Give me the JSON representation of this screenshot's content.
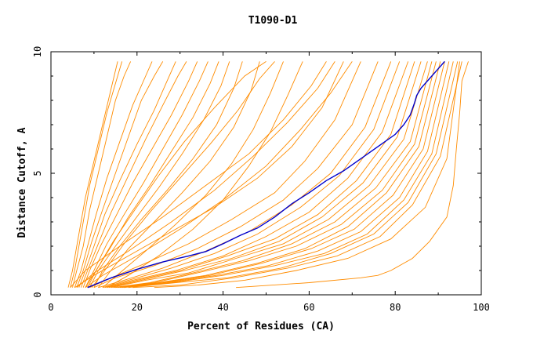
{
  "chart_data": {
    "type": "line",
    "title": "T1090-D1",
    "xlabel": "Percent of Residues (CA)",
    "ylabel": "Distance Cutoff, A",
    "xlim": [
      0,
      100
    ],
    "ylim": [
      0,
      10
    ],
    "x_ticks": [
      "0",
      "20",
      "40",
      "60",
      "80",
      "100"
    ],
    "y_ticks": [
      "0",
      "5",
      "10"
    ],
    "grid": false,
    "legend": "none",
    "colors": {
      "models": "#ff8c00",
      "highlight": "#0000cc",
      "frame": "#000000"
    },
    "highlight_series": {
      "x": [
        8.5,
        14,
        20,
        26,
        32,
        36,
        40,
        44,
        48,
        52,
        56,
        60,
        64,
        68,
        72,
        76,
        80,
        82,
        83.5,
        84.5,
        85,
        86,
        88,
        90,
        91.5
      ],
      "y": [
        0.3,
        0.7,
        1.05,
        1.35,
        1.6,
        1.78,
        2.1,
        2.45,
        2.75,
        3.2,
        3.75,
        4.2,
        4.7,
        5.1,
        5.6,
        6.1,
        6.6,
        7.0,
        7.4,
        7.9,
        8.2,
        8.5,
        8.9,
        9.3,
        9.6
      ]
    },
    "series": [
      {
        "x": [
          4.5,
          5.5,
          6.5,
          7.5,
          9,
          11,
          13,
          15.5,
          16.5
        ],
        "y": [
          0.3,
          1.0,
          2.0,
          3.0,
          4.5,
          6.0,
          7.5,
          9.0,
          9.6
        ]
      },
      {
        "x": [
          5,
          6,
          7.5,
          9,
          11,
          13,
          15,
          17,
          18.5
        ],
        "y": [
          0.3,
          1.0,
          2.0,
          3.5,
          5.0,
          6.5,
          8.0,
          9.0,
          9.6
        ]
      },
      {
        "x": [
          5.5,
          7,
          8.5,
          10.5,
          13,
          16,
          19,
          22,
          23.5
        ],
        "y": [
          0.3,
          1.0,
          2.0,
          3.3,
          4.8,
          6.3,
          7.8,
          9.0,
          9.6
        ]
      },
      {
        "x": [
          6,
          7.5,
          9.5,
          12,
          15,
          18,
          21,
          24,
          26
        ],
        "y": [
          0.3,
          1.0,
          2.2,
          3.5,
          5.0,
          6.5,
          8.0,
          9.0,
          9.6
        ]
      },
      {
        "x": [
          6.5,
          8,
          10,
          12.5,
          16,
          20,
          24,
          27,
          29
        ],
        "y": [
          0.3,
          1.0,
          2.0,
          3.3,
          4.7,
          6.2,
          7.6,
          8.8,
          9.6
        ]
      },
      {
        "x": [
          7,
          8.5,
          11,
          14,
          18,
          22,
          26,
          29.5,
          31.5
        ],
        "y": [
          0.3,
          1.0,
          2.1,
          3.4,
          4.9,
          6.4,
          7.8,
          9.0,
          9.6
        ]
      },
      {
        "x": [
          7.5,
          9,
          11.5,
          15,
          19,
          23.5,
          28,
          32,
          34
        ],
        "y": [
          0.3,
          1.0,
          2.0,
          3.2,
          4.6,
          6.0,
          7.4,
          8.8,
          9.6
        ]
      },
      {
        "x": [
          8,
          10,
          13,
          17,
          21.5,
          26,
          30.5,
          34.5,
          36.5
        ],
        "y": [
          0.3,
          1.0,
          2.1,
          3.3,
          4.6,
          6.0,
          7.4,
          8.8,
          9.6
        ]
      },
      {
        "x": [
          8.5,
          10.5,
          14,
          18,
          23,
          28,
          33,
          37,
          39
        ],
        "y": [
          0.3,
          1.0,
          2.0,
          3.2,
          4.5,
          5.9,
          7.3,
          8.7,
          9.6
        ]
      },
      {
        "x": [
          9,
          11,
          15,
          19.5,
          25,
          30.5,
          35.5,
          39.5,
          41.5
        ],
        "y": [
          0.3,
          1.0,
          2.0,
          3.1,
          4.4,
          5.8,
          7.2,
          8.6,
          9.6
        ]
      },
      {
        "x": [
          10,
          12,
          16,
          21,
          27,
          33,
          38.5,
          42.5,
          44.5
        ],
        "y": [
          0.3,
          1.0,
          2.0,
          3.1,
          4.3,
          5.6,
          7.0,
          8.5,
          9.6
        ]
      },
      {
        "x": [
          11,
          13.5,
          18,
          24,
          30.5,
          37,
          42.5,
          46.5,
          48.5
        ],
        "y": [
          0.3,
          0.9,
          1.9,
          3.0,
          4.2,
          5.5,
          6.9,
          8.4,
          9.6
        ]
      },
      {
        "x": [
          12,
          16,
          22,
          29,
          36,
          42,
          47,
          51,
          54
        ],
        "y": [
          0.3,
          0.9,
          1.8,
          2.9,
          4.1,
          5.4,
          6.8,
          8.3,
          9.6
        ]
      },
      {
        "x": [
          13,
          18,
          25,
          33,
          40,
          46,
          51,
          55,
          58.5
        ],
        "y": [
          0.3,
          0.8,
          1.6,
          2.7,
          3.9,
          5.3,
          6.7,
          8.2,
          9.6
        ]
      },
      {
        "x": [
          5.5,
          10,
          18,
          28,
          38,
          48,
          56,
          63,
          68
        ],
        "y": [
          0.3,
          0.8,
          1.6,
          2.6,
          3.6,
          4.8,
          6.1,
          7.7,
          9.6
        ]
      },
      {
        "x": [
          9,
          14,
          22,
          32,
          42,
          52,
          59,
          66,
          72
        ],
        "y": [
          0.3,
          0.7,
          1.3,
          2.1,
          3.1,
          4.2,
          5.5,
          7.2,
          9.6
        ]
      },
      {
        "x": [
          10,
          15,
          24,
          34,
          44,
          54,
          62,
          70,
          76
        ],
        "y": [
          0.3,
          0.7,
          1.2,
          1.9,
          2.8,
          3.9,
          5.2,
          7.0,
          9.6
        ]
      },
      {
        "x": [
          11,
          17,
          26,
          36,
          46,
          56,
          65,
          73,
          79
        ],
        "y": [
          0.3,
          0.6,
          1.1,
          1.8,
          2.6,
          3.7,
          5.0,
          6.9,
          9.6
        ]
      },
      {
        "x": [
          12,
          18,
          28,
          38,
          48,
          58,
          67,
          75,
          81
        ],
        "y": [
          0.3,
          0.6,
          1.1,
          1.7,
          2.5,
          3.6,
          4.9,
          6.8,
          9.6
        ]
      },
      {
        "x": [
          12.5,
          19,
          29,
          40,
          50,
          60,
          69,
          77,
          83
        ],
        "y": [
          0.3,
          0.6,
          1.0,
          1.6,
          2.4,
          3.4,
          4.8,
          6.7,
          9.6
        ]
      },
      {
        "x": [
          13,
          20,
          30,
          41,
          52,
          62,
          71,
          79,
          84.5
        ],
        "y": [
          0.3,
          0.6,
          1.0,
          1.6,
          2.3,
          3.3,
          4.7,
          6.6,
          9.6
        ]
      },
      {
        "x": [
          13.5,
          21,
          31,
          42,
          53,
          63,
          72.5,
          80.5,
          86
        ],
        "y": [
          0.3,
          0.6,
          1.0,
          1.5,
          2.2,
          3.2,
          4.6,
          6.5,
          9.6
        ]
      },
      {
        "x": [
          14,
          22,
          32,
          43,
          54,
          64.5,
          74,
          82,
          87.5
        ],
        "y": [
          0.3,
          0.6,
          0.9,
          1.5,
          2.1,
          3.1,
          4.5,
          6.4,
          9.6
        ]
      },
      {
        "x": [
          14.5,
          23,
          33,
          44.5,
          56,
          66,
          75.5,
          83.5,
          88.5
        ],
        "y": [
          0.3,
          0.5,
          0.9,
          1.4,
          2.1,
          3.0,
          4.4,
          6.3,
          9.6
        ]
      },
      {
        "x": [
          15,
          24,
          34,
          46,
          57,
          67.5,
          77,
          84.5,
          89.5
        ],
        "y": [
          0.3,
          0.5,
          0.9,
          1.4,
          2.0,
          2.9,
          4.3,
          6.2,
          9.6
        ]
      },
      {
        "x": [
          15.5,
          25,
          36,
          48,
          59,
          69,
          78,
          85.5,
          90.5
        ],
        "y": [
          0.3,
          0.5,
          0.8,
          1.3,
          1.9,
          2.8,
          4.2,
          6.1,
          9.6
        ]
      },
      {
        "x": [
          16,
          26,
          37,
          49,
          60.5,
          70.5,
          79.5,
          86.5,
          91.5
        ],
        "y": [
          0.3,
          0.5,
          0.8,
          1.3,
          1.9,
          2.7,
          4.1,
          6.0,
          9.6
        ]
      },
      {
        "x": [
          16.5,
          27,
          38.5,
          50.5,
          62,
          72,
          81,
          87.5,
          92.5
        ],
        "y": [
          0.3,
          0.5,
          0.8,
          1.2,
          1.8,
          2.6,
          4.0,
          5.9,
          9.6
        ]
      },
      {
        "x": [
          17,
          28,
          40,
          52,
          63.5,
          73.5,
          82,
          88.5,
          93.5
        ],
        "y": [
          0.3,
          0.5,
          0.8,
          1.2,
          1.7,
          2.5,
          3.9,
          5.8,
          9.6
        ]
      },
      {
        "x": [
          18,
          29,
          41,
          53.5,
          65,
          75,
          83,
          89.5,
          94.5
        ],
        "y": [
          0.3,
          0.5,
          0.7,
          1.1,
          1.7,
          2.5,
          3.8,
          5.8,
          9.6
        ]
      },
      {
        "x": [
          19,
          30,
          42.5,
          55,
          66.5,
          76.5,
          84,
          90.5,
          95.5
        ],
        "y": [
          0.3,
          0.4,
          0.7,
          1.1,
          1.6,
          2.4,
          3.7,
          5.7,
          9.6
        ]
      },
      {
        "x": [
          43,
          60,
          72,
          76,
          79,
          84,
          88,
          92,
          93.5,
          94.2,
          95,
          95.5,
          97
        ],
        "y": [
          0.3,
          0.5,
          0.7,
          0.8,
          1.0,
          1.5,
          2.2,
          3.2,
          4.5,
          6.0,
          7.5,
          8.8,
          9.6
        ]
      },
      {
        "x": [
          24,
          34,
          45,
          57,
          69,
          79,
          87,
          92,
          95
        ],
        "y": [
          0.3,
          0.4,
          0.6,
          1.0,
          1.5,
          2.3,
          3.6,
          5.6,
          9.6
        ]
      },
      {
        "x": [
          4.5,
          8,
          16,
          26,
          36,
          46,
          54,
          60.5,
          64
        ],
        "y": [
          0.3,
          1.0,
          2.0,
          3.2,
          4.5,
          5.8,
          7.2,
          8.6,
          9.6
        ]
      },
      {
        "x": [
          6,
          10,
          18,
          28,
          38,
          47,
          55,
          62,
          66
        ],
        "y": [
          0.3,
          0.9,
          1.8,
          3.0,
          4.3,
          5.7,
          7.1,
          8.5,
          9.6
        ]
      },
      {
        "x": [
          8,
          12,
          20,
          30,
          40,
          50,
          58,
          65,
          70
        ],
        "y": [
          0.3,
          0.8,
          1.6,
          2.7,
          3.9,
          5.3,
          6.8,
          8.3,
          9.6
        ]
      },
      {
        "x": [
          8,
          10.5,
          14.5,
          19.5,
          25,
          31,
          38,
          45,
          50
        ],
        "y": [
          0.3,
          1.0,
          2.2,
          3.5,
          4.9,
          6.3,
          7.7,
          9.0,
          9.6
        ]
      },
      {
        "x": [
          9.5,
          12.5,
          17,
          23,
          30,
          37,
          43.5,
          48.5,
          52
        ],
        "y": [
          0.3,
          1.0,
          2.1,
          3.4,
          4.8,
          6.2,
          7.6,
          8.9,
          9.6
        ]
      },
      {
        "x": [
          4,
          5,
          6,
          7,
          8,
          10,
          12,
          14,
          15.5
        ],
        "y": [
          0.3,
          1.0,
          2.0,
          3.0,
          4.0,
          5.5,
          7.0,
          8.5,
          9.6
        ]
      }
    ]
  }
}
